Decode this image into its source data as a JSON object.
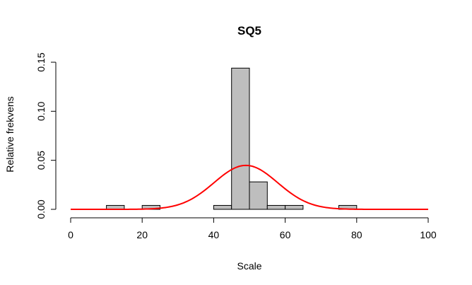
{
  "chart_data": {
    "type": "histogram",
    "title": "SQ5",
    "xlabel": "Scale",
    "ylabel": "Relative frekvens",
    "xlim": [
      0,
      100
    ],
    "ylim": [
      0,
      0.15
    ],
    "x_ticks": [
      "0",
      "20",
      "40",
      "60",
      "80",
      "100"
    ],
    "y_ticks": [
      "0.00",
      "0.05",
      "0.10",
      "0.15"
    ],
    "bins": [
      {
        "x0": 10,
        "x1": 15,
        "value": 0.004
      },
      {
        "x0": 20,
        "x1": 25,
        "value": 0.004
      },
      {
        "x0": 40,
        "x1": 45,
        "value": 0.004
      },
      {
        "x0": 45,
        "x1": 50,
        "value": 0.144
      },
      {
        "x0": 50,
        "x1": 55,
        "value": 0.028
      },
      {
        "x0": 55,
        "x1": 60,
        "value": 0.004
      },
      {
        "x0": 60,
        "x1": 65,
        "value": 0.004
      },
      {
        "x0": 75,
        "x1": 80,
        "value": 0.004
      }
    ],
    "density_curve": {
      "type": "normal",
      "mean": 49,
      "sd": 8.9,
      "x_range": [
        0,
        100
      ],
      "color": "#ff0000"
    },
    "bar_color": "#bebebe"
  }
}
